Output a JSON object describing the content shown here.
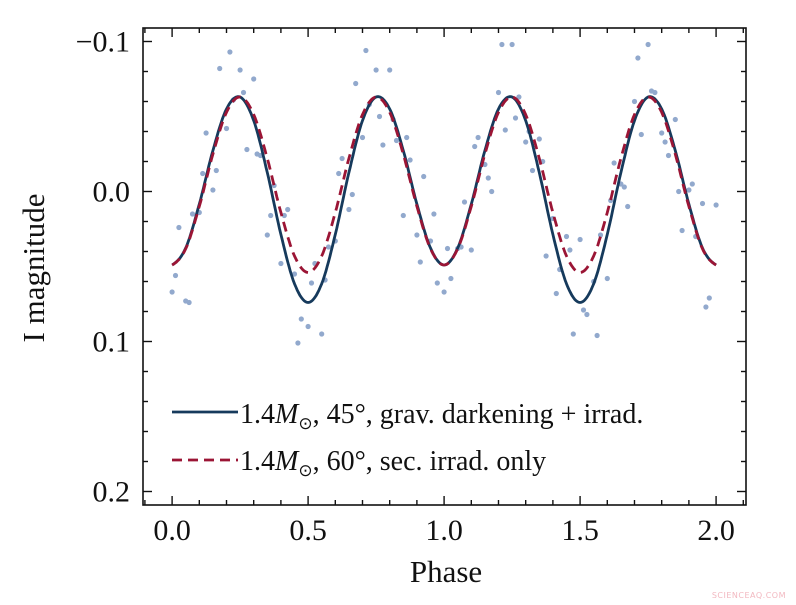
{
  "chart_data": {
    "type": "scatter",
    "title": "",
    "xlabel": "Phase",
    "ylabel": "I magnitude",
    "xlim": [
      -0.107,
      2.11
    ],
    "ylim": [
      0.209,
      -0.109
    ],
    "y_inverted": true,
    "grid": false,
    "x_ticks": [
      {
        "v": 0.0,
        "label": "0.0"
      },
      {
        "v": 0.5,
        "label": "0.5"
      },
      {
        "v": 1.0,
        "label": "1.0"
      },
      {
        "v": 1.5,
        "label": "1.5"
      },
      {
        "v": 2.0,
        "label": "2.0"
      }
    ],
    "y_ticks": [
      {
        "v": -0.1,
        "label": "−0.1"
      },
      {
        "v": 0.0,
        "label": "0.0"
      },
      {
        "v": 0.1,
        "label": "0.1"
      },
      {
        "v": 0.2,
        "label": "0.2"
      }
    ],
    "legend_placement": "bottom-left",
    "observations": {
      "color": "#92a9cd",
      "points": [
        [
          0,
          0.067
        ],
        [
          0.025,
          0.024
        ],
        [
          0.05,
          0.073
        ],
        [
          0.075,
          0.015
        ],
        [
          0.1,
          0.014
        ],
        [
          0.125,
          -0.039
        ],
        [
          0.15,
          -0.001
        ],
        [
          0.175,
          -0.082
        ],
        [
          0.2,
          -0.042
        ],
        [
          0.225,
          -0.061
        ],
        [
          0.25,
          -0.081
        ],
        [
          0.275,
          -0.028
        ],
        [
          0.3,
          -0.075
        ],
        [
          0.325,
          -0.024
        ],
        [
          0.35,
          0.029
        ],
        [
          0.375,
          -0.004
        ],
        [
          0.4,
          0.048
        ],
        [
          0.425,
          0.012
        ],
        [
          0.45,
          0.055
        ],
        [
          0.475,
          0.085
        ],
        [
          0.5,
          0.09
        ],
        [
          0.525,
          0.048
        ],
        [
          0.55,
          0.095
        ],
        [
          0.575,
          0.037
        ],
        [
          0.6,
          0.033
        ],
        [
          0.625,
          -0.022
        ],
        [
          0.65,
          0.012
        ],
        [
          0.675,
          -0.072
        ],
        [
          0.7,
          -0.036
        ],
        [
          0.725,
          -0.058
        ],
        [
          0.75,
          -0.081
        ],
        [
          0.775,
          -0.031
        ],
        [
          0.8,
          -0.081
        ],
        [
          0.825,
          -0.034
        ],
        [
          0.85,
          0.016
        ],
        [
          0.875,
          -0.021
        ],
        [
          0.9,
          0.029
        ],
        [
          0.925,
          -0.01
        ],
        [
          0.95,
          0.033
        ],
        [
          0.975,
          0.061
        ],
        [
          1.0,
          0.067
        ],
        [
          1.025,
          0.058
        ],
        [
          1.05,
          0.038
        ],
        [
          1.075,
          0.007
        ],
        [
          1.1,
          0.039
        ],
        [
          1.125,
          -0.036
        ],
        [
          1.15,
          -0.018
        ],
        [
          1.175,
          0.0
        ],
        [
          1.2,
          -0.066
        ],
        [
          1.225,
          -0.041
        ],
        [
          1.25,
          -0.098
        ],
        [
          1.275,
          -0.063
        ],
        [
          1.3,
          -0.033
        ],
        [
          1.325,
          -0.014
        ],
        [
          1.35,
          -0.035
        ],
        [
          1.375,
          0.043
        ],
        [
          1.4,
          0.018
        ],
        [
          1.425,
          0.052
        ],
        [
          1.45,
          0.03
        ],
        [
          1.475,
          0.095
        ],
        [
          1.5,
          0.032
        ],
        [
          1.525,
          0.082
        ],
        [
          1.55,
          0.06
        ],
        [
          1.575,
          0.029
        ],
        [
          1.6,
          0.058
        ],
        [
          1.625,
          -0.019
        ],
        [
          1.65,
          -0.005
        ],
        [
          1.675,
          0.01
        ],
        [
          1.7,
          -0.06
        ],
        [
          1.725,
          -0.038
        ],
        [
          1.75,
          -0.098
        ],
        [
          1.775,
          -0.066
        ],
        [
          1.8,
          -0.039
        ],
        [
          1.825,
          -0.024
        ],
        [
          1.85,
          -0.048
        ],
        [
          1.875,
          0.026
        ],
        [
          1.9,
          -0.001
        ],
        [
          1.925,
          0.03
        ],
        [
          1.95,
          0.008
        ],
        [
          1.975,
          0.071
        ],
        [
          2.0,
          0.009
        ],
        [
          0.0125,
          0.056
        ],
        [
          0.0625,
          0.074
        ],
        [
          0.1125,
          -0.012
        ],
        [
          0.1625,
          -0.014
        ],
        [
          0.2125,
          -0.093
        ],
        [
          0.2625,
          -0.066
        ],
        [
          0.3125,
          -0.025
        ],
        [
          0.3625,
          0.016
        ],
        [
          0.4125,
          0.016
        ],
        [
          0.4625,
          0.101
        ],
        [
          0.5125,
          0.061
        ],
        [
          0.5625,
          0.059
        ],
        [
          0.6125,
          -0.012
        ],
        [
          0.6625,
          0.002
        ],
        [
          0.7125,
          -0.094
        ],
        [
          0.7625,
          -0.05
        ],
        [
          0.8125,
          -0.048
        ],
        [
          0.8625,
          -0.036
        ],
        [
          0.9125,
          0.047
        ],
        [
          0.9625,
          0.015
        ],
        [
          1.0125,
          0.038
        ],
        [
          1.0625,
          0.037
        ],
        [
          1.1125,
          -0.03
        ],
        [
          1.1625,
          -0.009
        ],
        [
          1.2125,
          -0.098
        ],
        [
          1.2625,
          -0.049
        ],
        [
          1.3125,
          -0.04
        ],
        [
          1.3625,
          -0.02
        ],
        [
          1.4125,
          0.068
        ],
        [
          1.4625,
          0.039
        ],
        [
          1.5125,
          0.079
        ],
        [
          1.5625,
          0.096
        ],
        [
          1.6125,
          0.006
        ],
        [
          1.6625,
          -0.003
        ],
        [
          1.7125,
          -0.089
        ],
        [
          1.7625,
          -0.067
        ],
        [
          1.8125,
          -0.033
        ],
        [
          1.8625,
          0.0
        ],
        [
          1.9125,
          -0.005
        ],
        [
          1.9625,
          0.077
        ]
      ]
    },
    "series": [
      {
        "name": "1.4M⊙, 45°, grav. darkening + irrad.",
        "label_parts": {
          "prefix": "1.4",
          "symbol": "M",
          "subscript": "⊙",
          "suffix": ", 45°, grav. darkening + irrad."
        },
        "color": "#163a5c",
        "style": "solid",
        "x": [
          0,
          0.05,
          0.1,
          0.15,
          0.2,
          0.25,
          0.3,
          0.35,
          0.4,
          0.45,
          0.5,
          0.55,
          0.6,
          0.65,
          0.7,
          0.75,
          0.8,
          0.85,
          0.9,
          0.95,
          1.0,
          1.05,
          1.1,
          1.15,
          1.2,
          1.25,
          1.3,
          1.35,
          1.4,
          1.45,
          1.5,
          1.55,
          1.6,
          1.65,
          1.7,
          1.75,
          1.8,
          1.85,
          1.9,
          1.95,
          2.0
        ],
        "y": [
          0.049,
          0.0377,
          0.0084,
          -0.0273,
          -0.055,
          -0.063,
          -0.0473,
          -0.0126,
          0.0286,
          0.0615,
          0.074,
          0.0615,
          0.0286,
          -0.0126,
          -0.0473,
          -0.063,
          -0.055,
          -0.0273,
          0.0084,
          0.0377,
          0.049,
          0.0377,
          0.0084,
          -0.0273,
          -0.055,
          -0.063,
          -0.0473,
          -0.0126,
          0.0286,
          0.0615,
          0.074,
          0.0615,
          0.0286,
          -0.0126,
          -0.0473,
          -0.063,
          -0.055,
          -0.0273,
          0.0084,
          0.0377,
          0.049
        ]
      },
      {
        "name": "1.4M⊙, 60°, sec. irrad. only",
        "label_parts": {
          "prefix": "1.4",
          "symbol": "M",
          "subscript": "⊙",
          "suffix": ", 60°, sec. irrad. only"
        },
        "color": "#9b1535",
        "style": "dashed",
        "x": [
          0,
          0.05,
          0.1,
          0.15,
          0.2,
          0.25,
          0.3,
          0.35,
          0.4,
          0.45,
          0.5,
          0.55,
          0.6,
          0.65,
          0.7,
          0.75,
          0.8,
          0.85,
          0.9,
          0.95,
          1.0,
          1.05,
          1.1,
          1.15,
          1.2,
          1.25,
          1.3,
          1.35,
          1.4,
          1.45,
          1.5,
          1.55,
          1.6,
          1.65,
          1.7,
          1.75,
          1.8,
          1.85,
          1.9,
          1.95,
          2.0
        ],
        "y": [
          0.049,
          0.0382,
          0.0099,
          -0.0249,
          -0.0528,
          -0.063,
          -0.0513,
          -0.022,
          0.014,
          0.043,
          0.054,
          0.043,
          0.014,
          -0.022,
          -0.0513,
          -0.063,
          -0.0528,
          -0.0249,
          0.0099,
          0.0382,
          0.049,
          0.0382,
          0.0099,
          -0.0249,
          -0.0528,
          -0.063,
          -0.0513,
          -0.022,
          0.014,
          0.043,
          0.054,
          0.043,
          0.014,
          -0.022,
          -0.0513,
          -0.063,
          -0.0528,
          -0.0249,
          0.0099,
          0.0382,
          0.049
        ]
      }
    ]
  },
  "watermark": "SCIENCEAQ.COM"
}
